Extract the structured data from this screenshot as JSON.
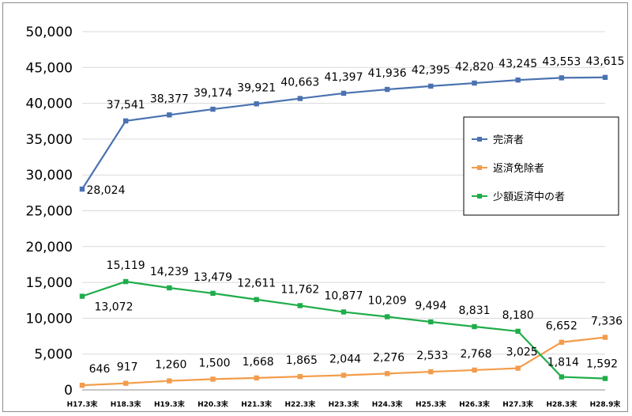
{
  "chart_data": {
    "type": "line",
    "categories": [
      "H17.3末",
      "H18.3末",
      "H19.3末",
      "H20.3末",
      "H21.3末",
      "H22.3末",
      "H23.3末",
      "H24.3末",
      "H25.3末",
      "H26.3末",
      "H27.3末",
      "H28.3末",
      "H28.9末"
    ],
    "ylim": [
      0,
      50000
    ],
    "yticks": [
      0,
      5000,
      10000,
      15000,
      20000,
      25000,
      30000,
      35000,
      40000,
      45000,
      50000
    ],
    "ytick_labels": [
      "0",
      "5,000",
      "10,000",
      "15,000",
      "20,000",
      "25,000",
      "30,000",
      "35,000",
      "40,000",
      "45,000",
      "50,000"
    ],
    "grid": true,
    "legend_position": "right",
    "series": [
      {
        "name": "完済者",
        "color": "#4a72b0",
        "values": [
          28024,
          37541,
          38377,
          39174,
          39921,
          40663,
          41397,
          41936,
          42395,
          42820,
          43245,
          43553,
          43615
        ],
        "labels": [
          "28,024",
          "37,541",
          "38,377",
          "39,174",
          "39,921",
          "40,663",
          "41,397",
          "41,936",
          "42,395",
          "42,820",
          "43,245",
          "43,553",
          "43,615"
        ]
      },
      {
        "name": "返済免除者",
        "color": "#f39c4b",
        "values": [
          646,
          917,
          1260,
          1500,
          1668,
          1865,
          2044,
          2276,
          2533,
          2768,
          3025,
          6652,
          7336
        ],
        "labels": [
          "646",
          "917",
          "1,260",
          "1,500",
          "1,668",
          "1,865",
          "2,044",
          "2,276",
          "2,533",
          "2,768",
          "3,025",
          "6,652",
          "7,336"
        ]
      },
      {
        "name": "少額返済中の者",
        "color": "#1fad4a",
        "values": [
          13072,
          15119,
          14239,
          13479,
          12611,
          11762,
          10877,
          10209,
          9494,
          8831,
          8180,
          1814,
          1592
        ],
        "labels": [
          "13,072",
          "15,119",
          "14,239",
          "13,479",
          "12,611",
          "11,762",
          "10,877",
          "10,209",
          "9,494",
          "8,831",
          "8,180",
          "1,814",
          "1,592"
        ]
      }
    ]
  }
}
